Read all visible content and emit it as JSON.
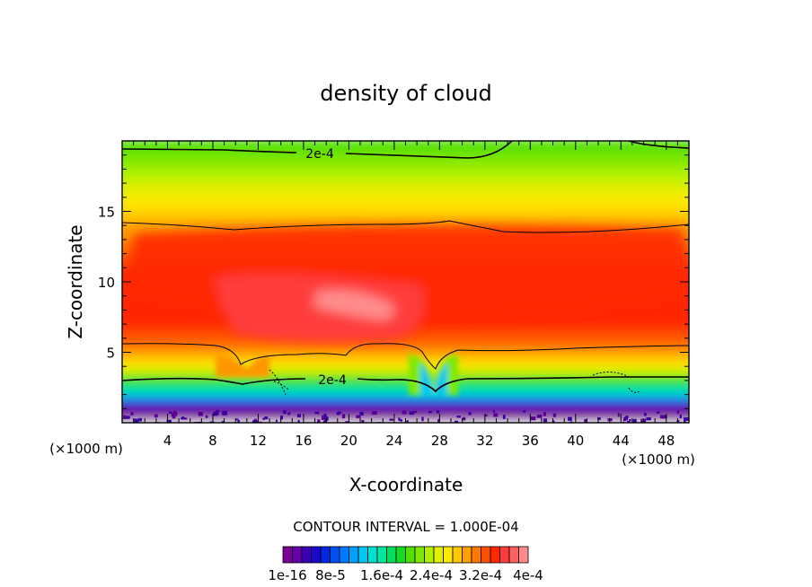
{
  "chart_data": {
    "type": "heatmap",
    "title": "density of cloud",
    "xlabel": "X-coordinate",
    "ylabel": "Z-coordinate",
    "x_unit_left": "(×1000 m)",
    "x_unit_right": "(×1000 m)",
    "xlim": [
      0,
      50
    ],
    "ylim": [
      0,
      20
    ],
    "x_ticks": [
      4,
      8,
      12,
      16,
      20,
      24,
      28,
      32,
      36,
      40,
      44,
      48
    ],
    "y_ticks": [
      5,
      10,
      15
    ],
    "contour_interval_text": "CONTOUR INTERVAL = 1.000E-04",
    "contour_labels": [
      "2e-4",
      "2e-4"
    ],
    "colorbar": {
      "levels": 26,
      "tick_labels": [
        "1e-16",
        "8e-5",
        "1.6e-4",
        "2.4e-4",
        "3.2e-4",
        "4e-4"
      ],
      "colors": [
        "#7a0098",
        "#6600a8",
        "#3c00b8",
        "#1a08cc",
        "#0028e0",
        "#0050f0",
        "#0078ff",
        "#00a0ff",
        "#00c8f0",
        "#00e0d0",
        "#00e8a0",
        "#00e060",
        "#10dc20",
        "#50e000",
        "#80e800",
        "#b0f000",
        "#e0f000",
        "#ffe800",
        "#ffc800",
        "#ffa000",
        "#ff7800",
        "#ff5000",
        "#ff2800",
        "#ff3c3c",
        "#ff6060",
        "#ff8c8c"
      ]
    },
    "depicted_field_summary": "Cloud density vs. X and Z; maximum ~4e-4 near x=18-26, z=8-10; 2e-4 contours near z≈3 and z≈19"
  }
}
